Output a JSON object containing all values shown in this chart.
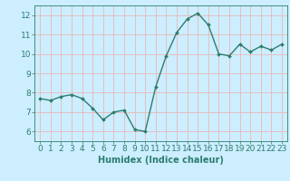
{
  "x": [
    0,
    1,
    2,
    3,
    4,
    5,
    6,
    7,
    8,
    9,
    10,
    11,
    12,
    13,
    14,
    15,
    16,
    17,
    18,
    19,
    20,
    21,
    22,
    23
  ],
  "y": [
    7.7,
    7.6,
    7.8,
    7.9,
    7.7,
    7.2,
    6.6,
    7.0,
    7.1,
    6.1,
    6.0,
    8.3,
    9.9,
    11.1,
    11.8,
    12.1,
    11.5,
    10.0,
    9.9,
    10.5,
    10.1,
    10.4,
    10.2,
    10.5
  ],
  "line_color": "#2d7d6e",
  "marker": "D",
  "marker_size": 2.0,
  "background_color": "#cceeff",
  "grid_color": "#e8b8b8",
  "xlabel": "Humidex (Indice chaleur)",
  "xlabel_fontsize": 7,
  "xlim": [
    -0.5,
    23.5
  ],
  "ylim": [
    5.5,
    12.5
  ],
  "yticks": [
    6,
    7,
    8,
    9,
    10,
    11,
    12
  ],
  "xticks": [
    0,
    1,
    2,
    3,
    4,
    5,
    6,
    7,
    8,
    9,
    10,
    11,
    12,
    13,
    14,
    15,
    16,
    17,
    18,
    19,
    20,
    21,
    22,
    23
  ],
  "tick_color": "#2d7d6e",
  "tick_fontsize": 6.5,
  "axis_color": "#2d7d6e",
  "line_width": 1.0
}
